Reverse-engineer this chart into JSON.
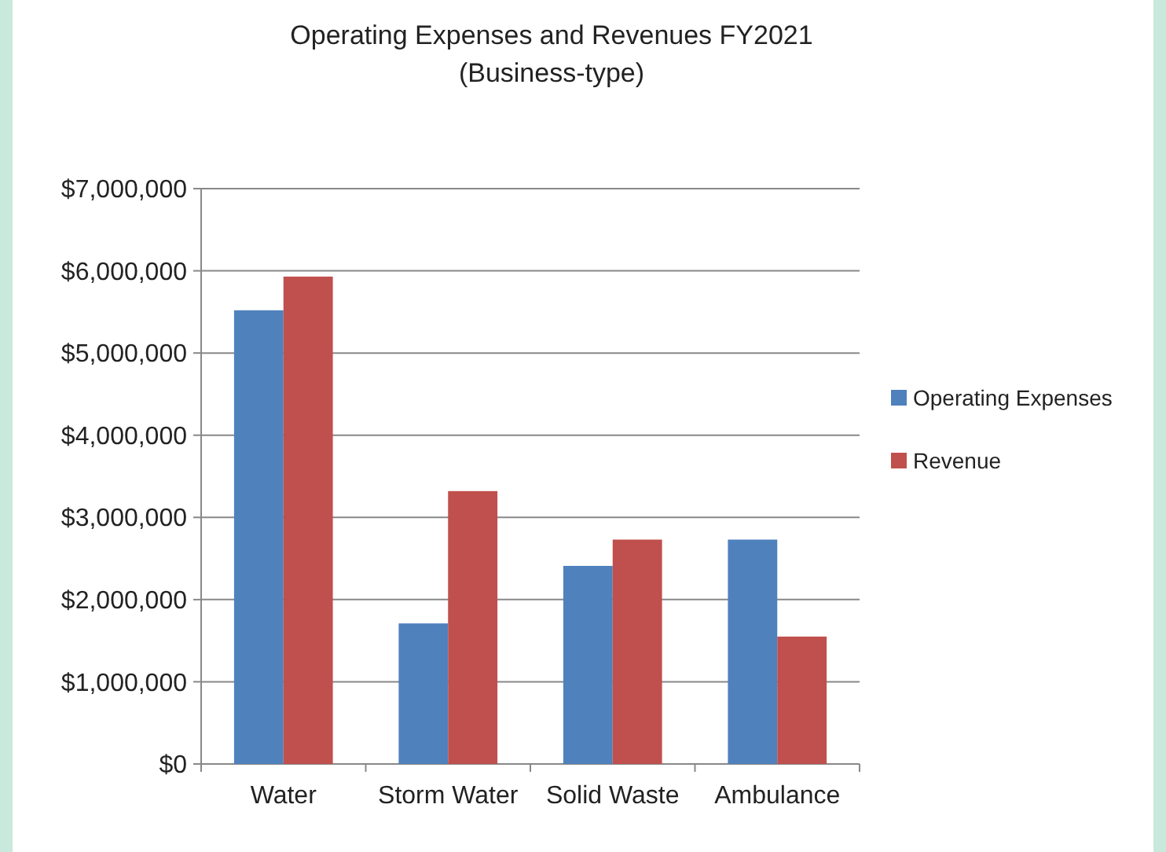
{
  "chart_data": {
    "type": "bar",
    "title": "Operating Expenses and Revenues FY2021",
    "subtitle": "(Business-type)",
    "categories": [
      "Water",
      "Storm Water",
      "Solid Waste",
      "Ambulance"
    ],
    "series": [
      {
        "name": "Operating Expenses",
        "color": "#4f81bd",
        "values": [
          5520000,
          1710000,
          2410000,
          2730000
        ]
      },
      {
        "name": "Revenue",
        "color": "#c0504d",
        "values": [
          5930000,
          3320000,
          2730000,
          1550000
        ]
      }
    ],
    "ylim": [
      0,
      7000000
    ],
    "yticks": [
      {
        "value": 0,
        "label": "$0"
      },
      {
        "value": 1000000,
        "label": "$1,000,000"
      },
      {
        "value": 2000000,
        "label": "$2,000,000"
      },
      {
        "value": 3000000,
        "label": "$3,000,000"
      },
      {
        "value": 4000000,
        "label": "$4,000,000"
      },
      {
        "value": 5000000,
        "label": "$5,000,000"
      },
      {
        "value": 6000000,
        "label": "$6,000,000"
      },
      {
        "value": 7000000,
        "label": "$7,000,000"
      }
    ],
    "grid": "y",
    "legend": "right"
  }
}
